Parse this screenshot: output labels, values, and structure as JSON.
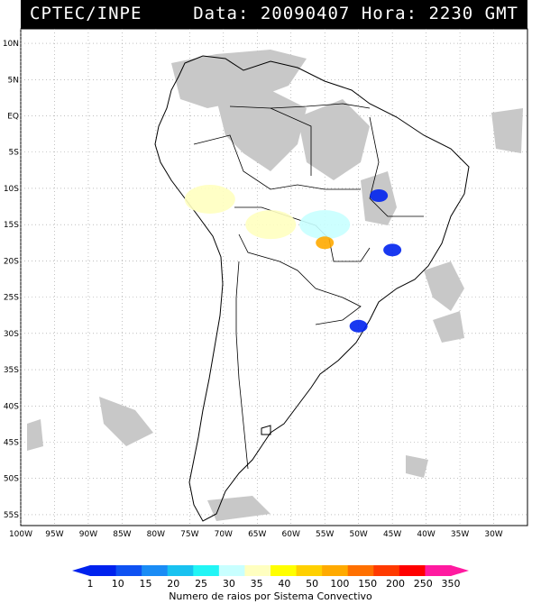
{
  "header": {
    "source": "CPTEC/INPE",
    "data_label": "Data:",
    "date": "20090407",
    "hora_label": "Hora:",
    "time": "2230 GMT"
  },
  "axes": {
    "lat_ticks": [
      "10N",
      "5N",
      "EQ",
      "5S",
      "10S",
      "15S",
      "20S",
      "25S",
      "30S",
      "35S",
      "40S",
      "45S",
      "50S",
      "55S"
    ],
    "lon_ticks": [
      "100W",
      "95W",
      "90W",
      "85W",
      "80W",
      "75W",
      "70W",
      "65W",
      "60W",
      "55W",
      "50W",
      "45W",
      "40W",
      "35W",
      "30W"
    ]
  },
  "legend": {
    "title": "Numero de raios por Sistema Convectivo",
    "values": [
      "1",
      "10",
      "15",
      "20",
      "25",
      "30",
      "35",
      "40",
      "50",
      "100",
      "150",
      "200",
      "250",
      "350"
    ],
    "colors": [
      "#0022ee",
      "#0f52f2",
      "#1a8cf5",
      "#19c2f0",
      "#22f5f5",
      "#c8ffff",
      "#ffffc0",
      "#ffff00",
      "#ffd000",
      "#ffaa00",
      "#ff7000",
      "#ff3a00",
      "#ff0000",
      "#ff1aa0"
    ]
  },
  "map": {
    "region": "South America",
    "cloud_color": "#c8c8c8",
    "systems": [
      {
        "color": "#ffffc0",
        "lat": -11.5,
        "lon": -72
      },
      {
        "color": "#ffffc0",
        "lat": -15,
        "lon": -63
      },
      {
        "color": "#c8ffff",
        "lat": -15,
        "lon": -55
      },
      {
        "color": "#ffaa00",
        "lat": -17.5,
        "lon": -55
      },
      {
        "color": "#0022ee",
        "lat": -11,
        "lon": -47
      },
      {
        "color": "#0022ee",
        "lat": -18.5,
        "lon": -45
      },
      {
        "color": "#0022ee",
        "lat": -29,
        "lon": -50
      }
    ]
  }
}
